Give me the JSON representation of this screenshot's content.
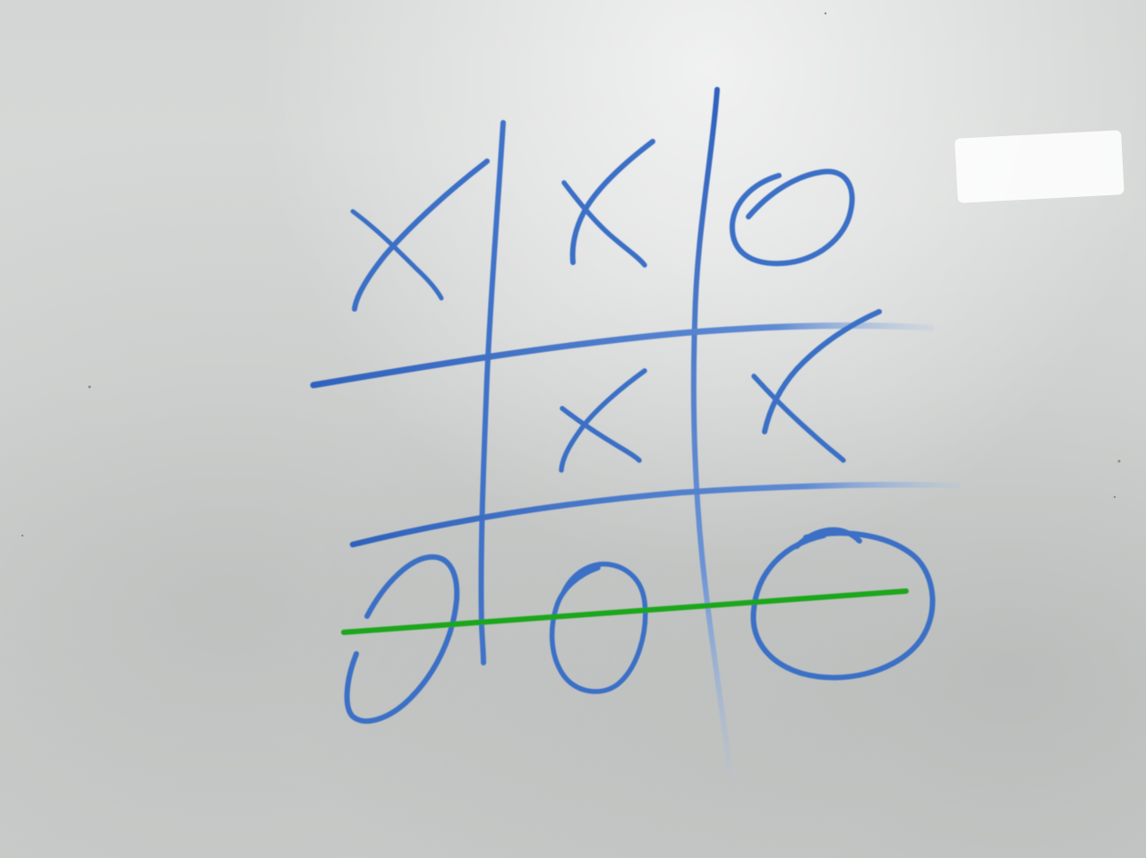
{
  "game": {
    "name": "tic-tac-toe",
    "board": [
      [
        "X",
        "X",
        "O"
      ],
      [
        "",
        "X",
        "X"
      ],
      [
        "O",
        "O",
        "O"
      ]
    ],
    "winner": "O",
    "winning_line": "bottom-row"
  },
  "colors": {
    "board_surface": "#d9dbda",
    "marker_blue": "#3a6fc6",
    "marker_blue_light": "#6f97d8",
    "win_line": "#1aa61a",
    "glare": "#ffffff"
  }
}
